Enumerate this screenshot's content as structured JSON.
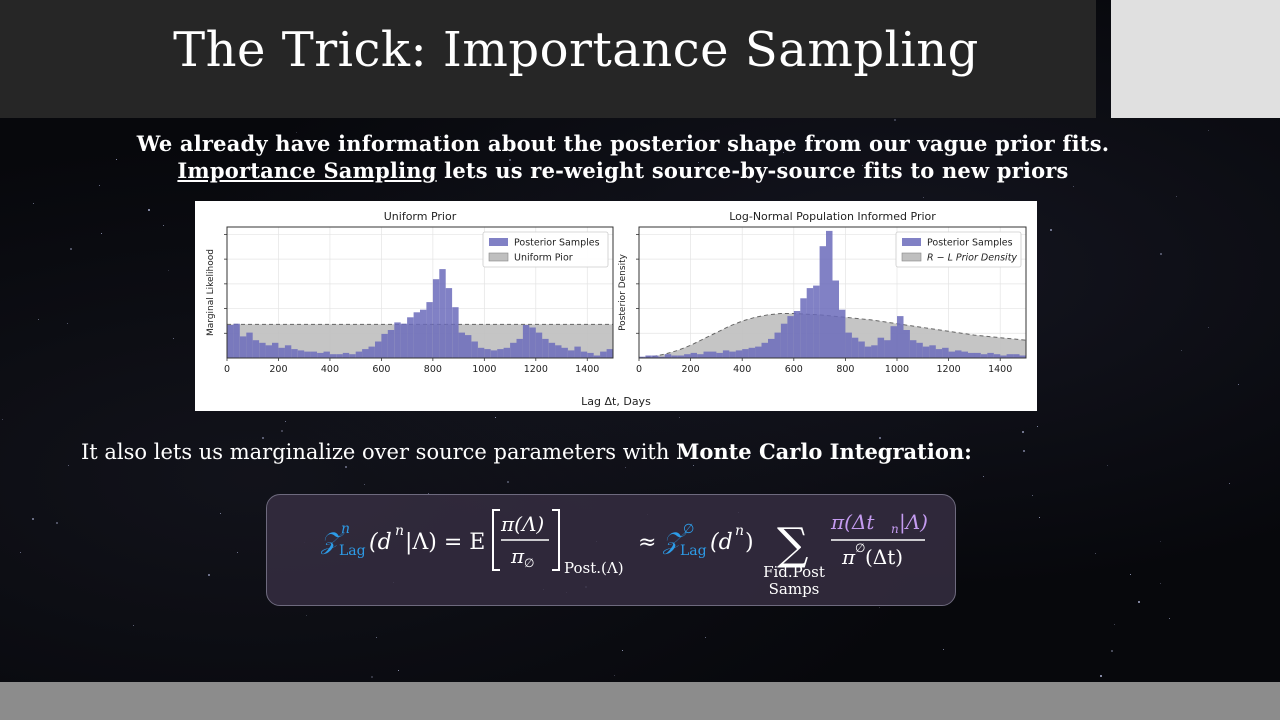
{
  "slide": {
    "title": "The Trick: Importance Sampling",
    "intro_line1": "We already have information about the posterior shape from our vague prior fits.",
    "intro_line2_link": "Importance Sampling",
    "intro_line2_rest": " lets us re-weight source-by-source fits to new priors",
    "mc_text_prefix": "It also lets us marginalize over source parameters with ",
    "mc_text_bold": "Monte Carlo Integration:"
  },
  "figure": {
    "xlabel": "Lag Δt, Days",
    "xticks": [
      "0",
      "200",
      "400",
      "600",
      "800",
      "1000",
      "1200",
      "1400"
    ]
  },
  "chart_data": [
    {
      "type": "bar",
      "title": "Uniform Prior",
      "xlabel": "Lag Δt, Days",
      "ylabel": "Marginal Likelihood",
      "xlim": [
        0,
        1500
      ],
      "ylim": [
        0,
        1
      ],
      "grid": true,
      "legend_position": "top-right",
      "x_bin_width": 25,
      "x_bin_start": 0,
      "series": [
        {
          "name": "Posterior Samples",
          "color": "#6b6bbb",
          "values": [
            0.26,
            0.27,
            0.17,
            0.2,
            0.14,
            0.12,
            0.1,
            0.12,
            0.08,
            0.1,
            0.07,
            0.06,
            0.05,
            0.05,
            0.04,
            0.05,
            0.03,
            0.03,
            0.04,
            0.03,
            0.05,
            0.07,
            0.09,
            0.13,
            0.19,
            0.22,
            0.28,
            0.27,
            0.32,
            0.36,
            0.38,
            0.44,
            0.62,
            0.7,
            0.55,
            0.4,
            0.2,
            0.18,
            0.13,
            0.08,
            0.07,
            0.06,
            0.07,
            0.08,
            0.12,
            0.15,
            0.26,
            0.24,
            0.2,
            0.15,
            0.12,
            0.1,
            0.08,
            0.06,
            0.09,
            0.05,
            0.04,
            0.02,
            0.05,
            0.07,
            0.04,
            0.03,
            0.03,
            0.04,
            0.04,
            0.04,
            0.05,
            0.04,
            0.03,
            0.05,
            0.02,
            0.04,
            0.03,
            0.02,
            0.04,
            0.03,
            0.02,
            0.04,
            0.03,
            0.02,
            0.03,
            0.02,
            0.02,
            0.01,
            0.02,
            0.02,
            0.02,
            0.01,
            0.02,
            0.02
          ]
        },
        {
          "name": "Uniform Pior",
          "color": "#bfbfbf",
          "uniform_value": 0.265
        }
      ]
    },
    {
      "type": "bar",
      "title": "Log-Normal Population Informed Prior",
      "xlabel": "Lag Δt, Days",
      "ylabel": "Posterior Density",
      "xlim": [
        0,
        1500
      ],
      "ylim": [
        0,
        1
      ],
      "grid": true,
      "legend_position": "top-right",
      "x_bin_width": 25,
      "x_bin_start": 0,
      "series": [
        {
          "name": "Posterior Samples",
          "color": "#6b6bbb",
          "values": [
            0.01,
            0.02,
            0.02,
            0.01,
            0.03,
            0.02,
            0.02,
            0.03,
            0.04,
            0.03,
            0.05,
            0.05,
            0.04,
            0.06,
            0.05,
            0.06,
            0.07,
            0.08,
            0.09,
            0.12,
            0.15,
            0.2,
            0.27,
            0.33,
            0.37,
            0.47,
            0.55,
            0.57,
            0.88,
            1.0,
            0.61,
            0.38,
            0.2,
            0.16,
            0.13,
            0.09,
            0.1,
            0.16,
            0.14,
            0.25,
            0.33,
            0.22,
            0.14,
            0.12,
            0.09,
            0.1,
            0.07,
            0.08,
            0.05,
            0.06,
            0.05,
            0.04,
            0.04,
            0.03,
            0.04,
            0.03,
            0.02,
            0.03,
            0.03,
            0.02,
            0.03,
            0.02,
            0.02,
            0.02,
            0.01,
            0.02,
            0.01,
            0.01,
            0.01,
            0.01,
            0.01,
            0.01,
            0.01,
            0.01,
            0.01,
            0.01,
            0.01,
            0.01,
            0.01,
            0.01
          ]
        },
        {
          "name": "R − L Prior Density",
          "color": "#bfbfbf",
          "curve_x": [
            0,
            50,
            100,
            150,
            200,
            250,
            300,
            350,
            400,
            450,
            500,
            550,
            600,
            650,
            700,
            750,
            800,
            850,
            900,
            950,
            1000,
            1050,
            1100,
            1150,
            1200,
            1250,
            1300,
            1350,
            1400,
            1450,
            1500
          ],
          "curve_y": [
            0.0,
            0.01,
            0.03,
            0.06,
            0.1,
            0.15,
            0.2,
            0.25,
            0.29,
            0.32,
            0.34,
            0.35,
            0.35,
            0.345,
            0.34,
            0.33,
            0.32,
            0.31,
            0.3,
            0.285,
            0.27,
            0.255,
            0.24,
            0.225,
            0.21,
            0.195,
            0.18,
            0.17,
            0.16,
            0.15,
            0.14
          ]
        }
      ]
    }
  ],
  "equation": {
    "Z": "𝒵",
    "sup_n": "n",
    "sub_lag": "Lag",
    "lhs_args": "(d",
    "lhs_sup": "n",
    "lhs_args2": "|Λ) = E",
    "num1": "π(Λ)",
    "den1": "π",
    "den1_sub": "∅",
    "post_sub": "Post.(Λ)",
    "approx": "≈",
    "sup_empty": "∅",
    "rhs_args": "(d",
    "rhs_sup": "n",
    "rhs_close": ")",
    "sum": "∑",
    "sum_sub1": "Fid.Post",
    "sum_sub2": "Samps",
    "num2": "π(Δt",
    "num2_sub": "n",
    "num2_close": "|Λ)",
    "den2": "π",
    "den2_sup": "∅",
    "den2_args": "(Δt)",
    "color_blue": "#2d9ce8",
    "color_purple": "#c49bf0"
  }
}
